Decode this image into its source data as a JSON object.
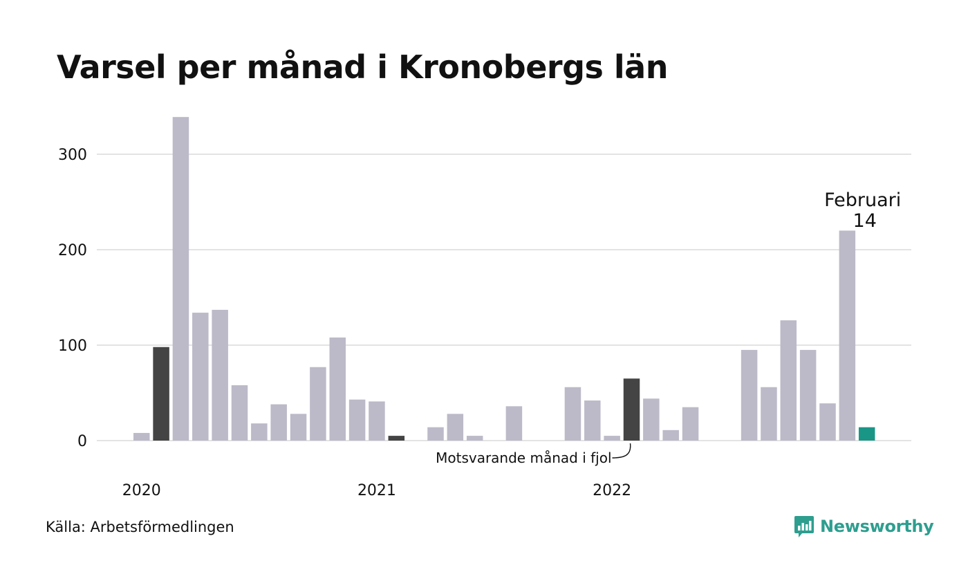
{
  "title": "Varsel per månad i Kronobergs län",
  "source": "Källa: Arbetsförmedlingen",
  "brand": {
    "name": "Newsworthy",
    "icon": "newsworthy-logo-icon",
    "color": "#2e9e8f"
  },
  "colors": {
    "bar": "#bcbac8",
    "highlight_previous": "#444444",
    "current": "#1a9687",
    "grid": "#e3e3e3"
  },
  "annotation_previous": "Motsvarande månad i fjol",
  "callout": {
    "month": "Februari",
    "value": "14"
  },
  "chart_data": {
    "type": "bar",
    "title": "Varsel per månad i Kronobergs län",
    "ylim": [
      0,
      340
    ],
    "yticks": [
      0,
      100,
      200,
      300
    ],
    "grid": true,
    "x_labels": [
      {
        "label": "2020",
        "index": 0
      },
      {
        "label": "2021",
        "index": 12
      },
      {
        "label": "2022",
        "index": 24
      }
    ],
    "highlight_previous_indices": [
      1,
      13,
      25
    ],
    "current_index": 37,
    "values": [
      8,
      98,
      339,
      134,
      137,
      58,
      18,
      38,
      28,
      77,
      108,
      43,
      41,
      5,
      0,
      14,
      28,
      5,
      0,
      36,
      0,
      0,
      56,
      42,
      5,
      65,
      44,
      11,
      35,
      0,
      0,
      95,
      56,
      126,
      95,
      39,
      220,
      14
    ]
  }
}
